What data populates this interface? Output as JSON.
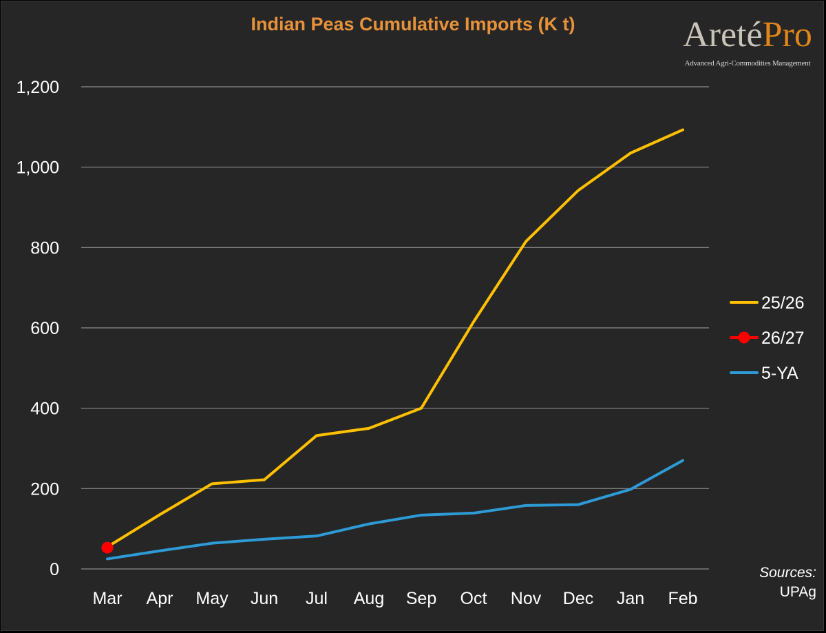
{
  "chart_data": {
    "type": "line",
    "title": "Indian Peas Cumulative Imports (K t)",
    "categories": [
      "Mar",
      "Apr",
      "May",
      "Jun",
      "Jul",
      "Aug",
      "Sep",
      "Oct",
      "Nov",
      "Dec",
      "Jan",
      "Feb"
    ],
    "ylim": [
      0,
      1200
    ],
    "yticks": [
      0,
      200,
      400,
      600,
      800,
      1000,
      1200
    ],
    "ytick_labels": [
      "0",
      "200",
      "400",
      "600",
      "800",
      "1,000",
      "1,200"
    ],
    "grid": true,
    "legend_position": "right",
    "series": [
      {
        "name": "25/26",
        "color": "#FFC000",
        "marker": false,
        "values": [
          55,
          135,
          212,
          222,
          332,
          350,
          400,
          615,
          815,
          942,
          1035,
          1093
        ]
      },
      {
        "name": "26/27",
        "color": "#FF0000",
        "marker": true,
        "values": [
          53,
          null,
          null,
          null,
          null,
          null,
          null,
          null,
          null,
          null,
          null,
          null
        ]
      },
      {
        "name": "5-YA",
        "color": "#2E9BD6",
        "marker": false,
        "values": [
          25,
          45,
          64,
          74,
          82,
          112,
          134,
          139,
          158,
          160,
          198,
          270
        ]
      }
    ]
  },
  "logo": {
    "name_part1": "Areté",
    "name_part2": "Pro",
    "tagline": "Advanced Agri-Commodities Management"
  },
  "footer": {
    "sources_label": "Sources:",
    "sources_value": "UPAg"
  },
  "colors": {
    "background": "#262626",
    "title": "#E7923A",
    "text": "#FFFFFF",
    "gridline": "#8C8C8C"
  }
}
